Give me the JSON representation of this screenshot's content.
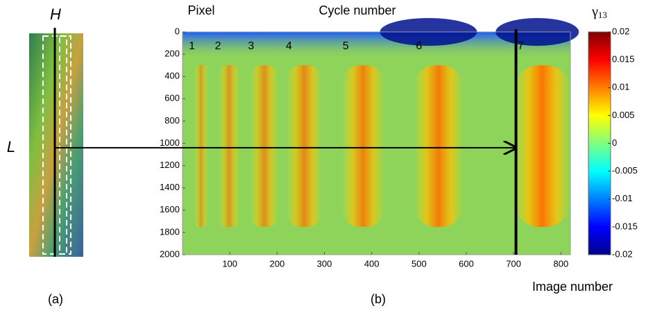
{
  "chart_data": {
    "type": "heatmap",
    "panel_a": {
      "top_label": "H",
      "side_label": "L",
      "caption": "(a)"
    },
    "caption": "(b)",
    "y_label": "Pixel",
    "title": "Cycle number",
    "x_label": "Image number",
    "colorbar_label": {
      "symbol": "γ",
      "subscript": "13"
    },
    "xlim": [
      0,
      820
    ],
    "xticks": [
      100,
      200,
      300,
      400,
      500,
      600,
      700,
      800
    ],
    "ylim": [
      2000,
      0
    ],
    "yticks": [
      0,
      200,
      400,
      600,
      800,
      1000,
      1200,
      1400,
      1600,
      1800,
      2000
    ],
    "clim": [
      -0.02,
      0.02
    ],
    "cticks": [
      0.02,
      0.015,
      0.01,
      0.005,
      0,
      -0.005,
      -0.01,
      -0.015,
      -0.02
    ],
    "cycles": {
      "labels": [
        "1",
        "2",
        "3",
        "4",
        "5",
        "6",
        "7"
      ],
      "x": [
        20,
        75,
        145,
        225,
        345,
        500,
        715
      ]
    },
    "marker": {
      "x": 705,
      "y": 1040
    }
  }
}
